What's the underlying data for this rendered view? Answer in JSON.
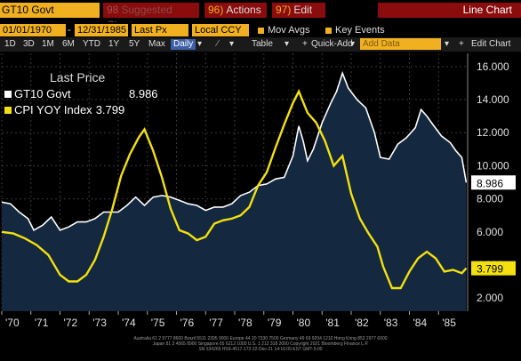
{
  "toolbar": {
    "ticker": "GT10 Govt",
    "suggested": "Suggested Charts",
    "suggested_num": "98",
    "actions": "Actions",
    "actions_num": "96)",
    "edit": "Edit",
    "edit_num": "97)",
    "view": "Line Chart"
  },
  "settings": {
    "start_date": "01/01/1970",
    "end_date": "12/31/1985",
    "field": "Last Px",
    "currency": "Local CCY",
    "mov_avgs": "Mov Avgs",
    "key_events": "Key Events",
    "colors": {
      "accent": "#f0b020",
      "bar_red": "#8a0c0c"
    }
  },
  "periods": [
    "1D",
    "3D",
    "1M",
    "6M",
    "YTD",
    "1Y",
    "5Y",
    "Max"
  ],
  "frequency": "Daily",
  "tools": {
    "table": "Table",
    "quick_add": "Quick-Add",
    "add_data": "Add Data",
    "edit_chart": "Edit Chart"
  },
  "legend": {
    "title": "Last Price",
    "items": [
      {
        "name": "GT10 Govt",
        "value": "8.986",
        "color": "#ffffff"
      },
      {
        "name": "CPI YOY Index",
        "value": "3.799",
        "color": "#f2e010"
      }
    ]
  },
  "chart_data": {
    "type": "line",
    "xlabel": "",
    "ylabel": "",
    "x_ticks": [
      "'70",
      "'71",
      "'72",
      "'73",
      "'74",
      "'75",
      "'76",
      "'77",
      "'78",
      "'79",
      "'80",
      "'81",
      "'82",
      "'83",
      "'84",
      "'85"
    ],
    "y_ticks": [
      "2.000",
      "4.000",
      "6.000",
      "8.000",
      "10.000",
      "12.000",
      "14.000",
      "16.000"
    ],
    "ylim": [
      1.2,
      16.8
    ],
    "xlim": [
      1970.0,
      1986.0
    ],
    "series": [
      {
        "name": "GT10 Govt",
        "color": "#ffffff",
        "fill": "#14283f",
        "last_label": "8.986",
        "x": [
          1970.0,
          1970.3,
          1970.6,
          1970.9,
          1971.1,
          1971.4,
          1971.7,
          1972.0,
          1972.3,
          1972.6,
          1972.9,
          1973.2,
          1973.5,
          1973.8,
          1974.0,
          1974.3,
          1974.6,
          1974.9,
          1975.2,
          1975.5,
          1975.8,
          1976.1,
          1976.4,
          1976.7,
          1977.0,
          1977.3,
          1977.6,
          1977.9,
          1978.2,
          1978.5,
          1978.8,
          1979.1,
          1979.4,
          1979.7,
          1980.0,
          1980.2,
          1980.35,
          1980.5,
          1980.7,
          1981.0,
          1981.3,
          1981.5,
          1981.7,
          1981.9,
          1982.2,
          1982.5,
          1982.8,
          1983.0,
          1983.3,
          1983.6,
          1983.9,
          1984.2,
          1984.4,
          1984.6,
          1984.8,
          1985.1,
          1985.4,
          1985.6,
          1985.8,
          1985.95
        ],
        "y": [
          7.8,
          7.7,
          7.2,
          6.8,
          6.1,
          6.4,
          6.9,
          6.1,
          6.3,
          6.6,
          6.6,
          6.8,
          7.2,
          7.2,
          7.2,
          7.6,
          8.1,
          7.6,
          8.1,
          8.2,
          8.1,
          7.9,
          7.7,
          7.6,
          7.3,
          7.5,
          7.5,
          7.7,
          8.2,
          8.4,
          8.8,
          8.9,
          9.2,
          9.3,
          10.6,
          12.4,
          11.5,
          10.3,
          11.0,
          12.6,
          13.8,
          14.5,
          15.6,
          14.7,
          14.0,
          13.5,
          12.0,
          10.5,
          10.4,
          11.3,
          11.7,
          12.3,
          13.4,
          13.0,
          12.5,
          11.8,
          11.4,
          10.9,
          10.5,
          8.986
        ]
      },
      {
        "name": "CPI YOY Index",
        "color": "#f2e010",
        "last_label": "3.799",
        "x": [
          1970.0,
          1970.4,
          1970.8,
          1971.2,
          1971.6,
          1972.0,
          1972.3,
          1972.6,
          1972.9,
          1973.2,
          1973.5,
          1973.8,
          1974.1,
          1974.4,
          1974.7,
          1974.9,
          1975.2,
          1975.5,
          1975.8,
          1976.1,
          1976.4,
          1976.7,
          1977.0,
          1977.3,
          1977.6,
          1977.9,
          1978.2,
          1978.5,
          1978.8,
          1979.1,
          1979.4,
          1979.7,
          1980.0,
          1980.2,
          1980.5,
          1980.8,
          1981.1,
          1981.4,
          1981.7,
          1982.0,
          1982.3,
          1982.6,
          1982.9,
          1983.1,
          1983.4,
          1983.7,
          1984.0,
          1984.3,
          1984.6,
          1984.9,
          1985.2,
          1985.5,
          1985.8,
          1985.95
        ],
        "y": [
          6.0,
          5.9,
          5.6,
          5.2,
          4.6,
          3.4,
          3.0,
          3.0,
          3.4,
          4.3,
          5.7,
          7.4,
          9.4,
          10.7,
          11.7,
          12.2,
          10.9,
          9.3,
          7.4,
          6.1,
          5.9,
          5.5,
          5.7,
          6.5,
          6.7,
          6.8,
          7.0,
          7.5,
          8.8,
          9.6,
          11.1,
          12.5,
          13.8,
          14.5,
          13.2,
          12.6,
          11.5,
          10.0,
          10.6,
          8.3,
          6.8,
          5.9,
          5.1,
          3.9,
          2.6,
          2.6,
          3.6,
          4.4,
          4.8,
          4.4,
          3.6,
          3.7,
          3.5,
          3.799
        ]
      }
    ],
    "grid": true,
    "legend_position": "top-left"
  },
  "footer": {
    "line1": "Australia 61 2 9777 8600  Brazil 5511 2395 9000  Europe 44 20 7330 7500  Germany 49 69 9204 1210  Hong Kong 852 2977 6000",
    "line2": "Japan 81 3 4565 8900        Singapore 65 6212 1000        U.S. 1 212 318 2000        Copyright 2021 Bloomberg Finance L.P.",
    "line3": "SN 334269 HS9-4517-173 22-Dec-21 14:16:00 EST  GMT-5:00"
  }
}
